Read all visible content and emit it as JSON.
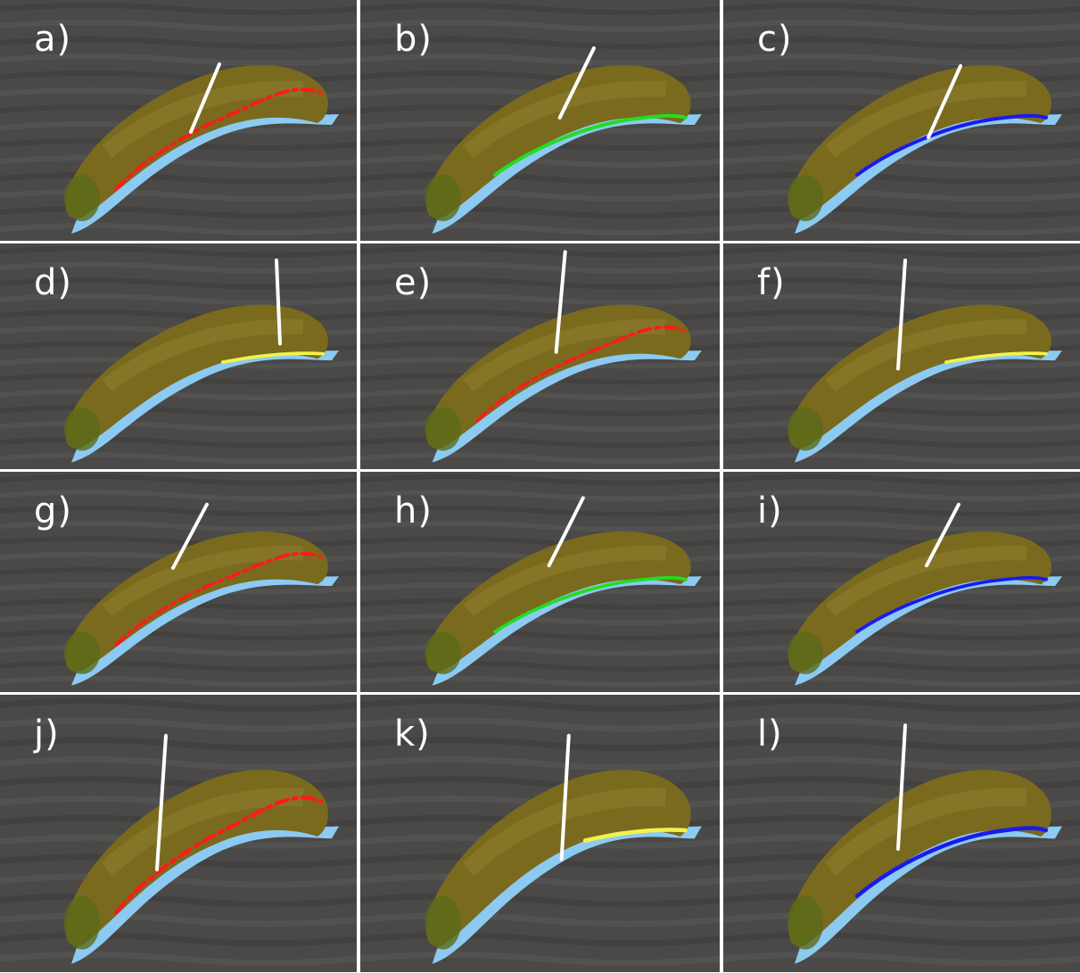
{
  "figure": {
    "panels": [
      {
        "label": "a)",
        "marker_color": "#ff1a1a",
        "marker_style": "dashed"
      },
      {
        "label": "b)",
        "marker_color": "#22dd22",
        "marker_style": "solid"
      },
      {
        "label": "c)",
        "marker_color": "#1a1aee",
        "marker_style": "solid"
      },
      {
        "label": "d)",
        "marker_color": "#f2f24a",
        "marker_style": "short"
      },
      {
        "label": "e)",
        "marker_color": "#ff1a1a",
        "marker_style": "dashed"
      },
      {
        "label": "f)",
        "marker_color": "#f2f24a",
        "marker_style": "short"
      },
      {
        "label": "g)",
        "marker_color": "#ff1a1a",
        "marker_style": "dashed"
      },
      {
        "label": "h)",
        "marker_color": "#22dd22",
        "marker_style": "solid"
      },
      {
        "label": "i)",
        "marker_color": "#1a1aee",
        "marker_style": "solid"
      },
      {
        "label": "j)",
        "marker_color": "#ff1a1a",
        "marker_style": "dashed"
      },
      {
        "label": "k)",
        "marker_color": "#f2f24a",
        "marker_style": "short"
      },
      {
        "label": "l)",
        "marker_color": "#1a1aee",
        "marker_style": "solid"
      }
    ],
    "colors": {
      "background": "#4a4947",
      "banana": "#7a6a1e",
      "banana_tip": "#5a6a18",
      "outline": "#8ccaf2",
      "cut_line": "#ffffff"
    }
  }
}
